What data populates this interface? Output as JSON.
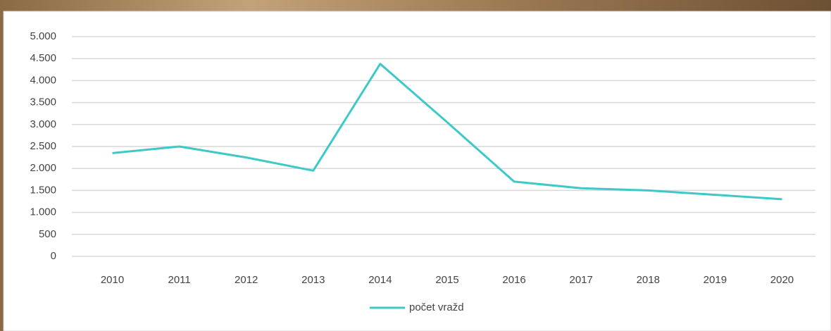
{
  "chart_data": {
    "type": "line",
    "categories": [
      "2010",
      "2011",
      "2012",
      "2013",
      "2014",
      "2015",
      "2016",
      "2017",
      "2018",
      "2019",
      "2020"
    ],
    "series": [
      {
        "name": "počet vražd",
        "color": "#3ec9c9",
        "values": [
          2350,
          2500,
          2250,
          1950,
          4380,
          3050,
          1700,
          1550,
          1500,
          1400,
          1300
        ]
      }
    ],
    "ylim": [
      0,
      5000
    ],
    "yticks": [
      0,
      500,
      {
        "value": 1000,
        "label": "1.000"
      },
      {
        "value": 1500,
        "label": "1.500"
      },
      {
        "value": 2000,
        "label": "2.000"
      },
      {
        "value": 2500,
        "label": "2.500"
      },
      {
        "value": 3000,
        "label": "3.000"
      },
      {
        "value": 3500,
        "label": "3.500"
      },
      {
        "value": 4000,
        "label": "4.000"
      },
      {
        "value": 4500,
        "label": "4.500"
      },
      {
        "value": 5000,
        "label": "5.000"
      }
    ],
    "grid": true,
    "legend": "bottom"
  }
}
